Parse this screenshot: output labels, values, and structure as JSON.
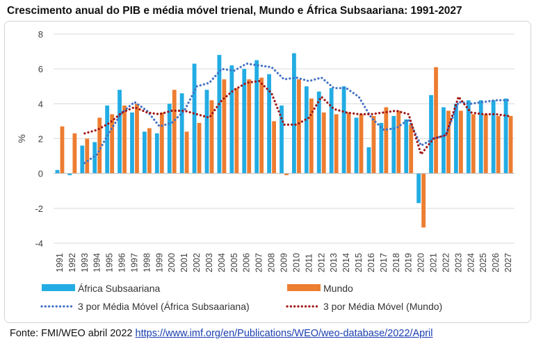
{
  "title": "Crescimento anual do PIB e média móvel trienal, Mundo e África Subsaariana: 1991-2027",
  "source": {
    "label": "Fonte: FMI/WEO abril 2022",
    "url_text": "https://www.imf.org/en/Publications/WEO/weo-database/2022/April"
  },
  "colors": {
    "ssa": "#22ace3",
    "world": "#ed7d31",
    "ssa_ma": "#4472c4",
    "world_ma": "#a01515",
    "grid": "#d9d9d9"
  },
  "chart_data": {
    "type": "bar",
    "title": "Crescimento anual do PIB e média móvel trienal, Mundo e África Subsaariana: 1991-2027",
    "xlabel": "",
    "ylabel": "%",
    "ylim": [
      -4,
      8
    ],
    "yticks": [
      -4,
      -2,
      0,
      2,
      4,
      6,
      8
    ],
    "grid": true,
    "legend_position": "bottom",
    "categories": [
      "1991",
      "1992",
      "1993",
      "1994",
      "1995",
      "1996",
      "1997",
      "1998",
      "1999",
      "2000",
      "2001",
      "2002",
      "2003",
      "2004",
      "2005",
      "2006",
      "2007",
      "2008",
      "2009",
      "2010",
      "2011",
      "2012",
      "2013",
      "2014",
      "2015",
      "2016",
      "2017",
      "2018",
      "2019",
      "2020",
      "2021",
      "2022",
      "2023",
      "2024",
      "2025",
      "2026",
      "2027"
    ],
    "series": [
      {
        "name": "África Subsaariana",
        "kind": "bar",
        "values": [
          0.2,
          -0.1,
          1.6,
          1.8,
          3.9,
          4.8,
          3.5,
          2.4,
          2.3,
          4.0,
          4.6,
          6.3,
          4.8,
          6.8,
          6.2,
          6.0,
          6.5,
          5.7,
          3.9,
          6.9,
          5.0,
          4.7,
          4.9,
          5.0,
          3.2,
          1.5,
          2.9,
          3.3,
          3.1,
          -1.7,
          4.5,
          3.8,
          4.0,
          4.2,
          4.2,
          4.2,
          4.3
        ]
      },
      {
        "name": "Mundo",
        "kind": "bar",
        "values": [
          2.7,
          2.3,
          2.0,
          3.2,
          3.4,
          3.9,
          4.0,
          2.6,
          3.5,
          4.8,
          2.4,
          2.9,
          4.2,
          5.4,
          4.9,
          5.4,
          5.5,
          3.0,
          -0.1,
          5.4,
          4.3,
          3.5,
          3.4,
          3.5,
          3.4,
          3.3,
          3.8,
          3.6,
          2.8,
          -3.1,
          6.1,
          3.6,
          3.6,
          3.4,
          3.4,
          3.3,
          3.3
        ]
      },
      {
        "name": "3 por Média Móvel (África Subsaariana)",
        "kind": "line",
        "values": [
          null,
          null,
          0.6,
          1.1,
          2.4,
          3.5,
          4.1,
          3.6,
          2.7,
          2.9,
          3.6,
          5.0,
          5.2,
          6.0,
          5.9,
          6.3,
          6.2,
          6.1,
          5.4,
          5.5,
          5.3,
          5.5,
          4.9,
          4.9,
          4.4,
          3.2,
          2.5,
          2.6,
          3.1,
          1.6,
          2.0,
          2.2,
          4.1,
          4.0,
          4.1,
          4.2,
          4.2
        ]
      },
      {
        "name": "3 por Média Móvel (Mundo)",
        "kind": "line",
        "values": [
          null,
          null,
          2.3,
          2.5,
          2.9,
          3.5,
          3.8,
          3.5,
          3.4,
          3.6,
          3.6,
          3.4,
          3.2,
          4.2,
          4.8,
          5.2,
          5.3,
          4.6,
          2.8,
          2.8,
          3.2,
          4.4,
          3.7,
          3.5,
          3.4,
          3.4,
          3.5,
          3.6,
          3.4,
          1.1,
          2.0,
          2.2,
          4.4,
          3.5,
          3.4,
          3.4,
          3.3
        ]
      }
    ]
  }
}
